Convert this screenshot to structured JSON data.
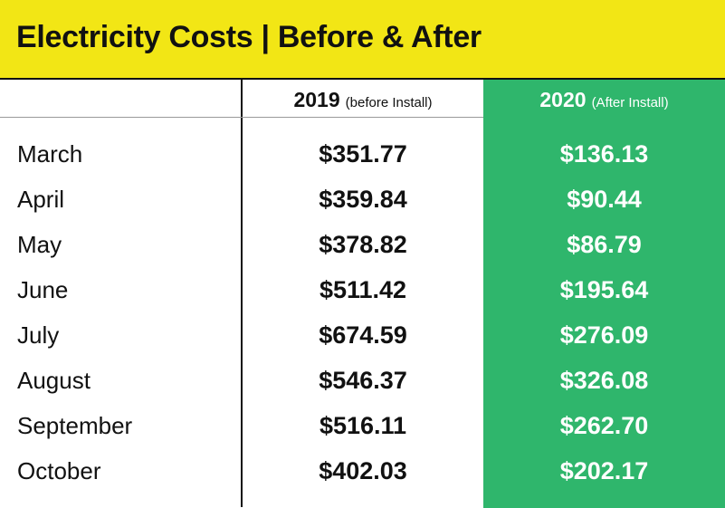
{
  "title": "Electricity Costs | Before & After",
  "columns": {
    "col_2019": {
      "year": "2019",
      "note": "(before Install)"
    },
    "col_2020": {
      "year": "2020",
      "note": "(After Install)"
    }
  },
  "colors": {
    "title_bg": "#f2e615",
    "highlight": "#2fb66c",
    "text": "#111111"
  },
  "chart_data": {
    "type": "table",
    "title": "Electricity Costs | Before & After",
    "columns": [
      "",
      "2019 (before Install)",
      "2020 (After Install)"
    ],
    "rows": [
      {
        "month": "March",
        "v2019": "$351.77",
        "v2020": "$136.13"
      },
      {
        "month": "April",
        "v2019": "$359.84",
        "v2020": "$90.44"
      },
      {
        "month": "May",
        "v2019": "$378.82",
        "v2020": "$86.79"
      },
      {
        "month": "June",
        "v2019": "$511.42",
        "v2020": "$195.64"
      },
      {
        "month": "July",
        "v2019": "$674.59",
        "v2020": "$276.09"
      },
      {
        "month": "August",
        "v2019": "$546.37",
        "v2020": "$326.08"
      },
      {
        "month": "September",
        "v2019": "$516.11",
        "v2020": "$262.70"
      },
      {
        "month": "October",
        "v2019": "$402.03",
        "v2020": "$202.17"
      }
    ]
  }
}
